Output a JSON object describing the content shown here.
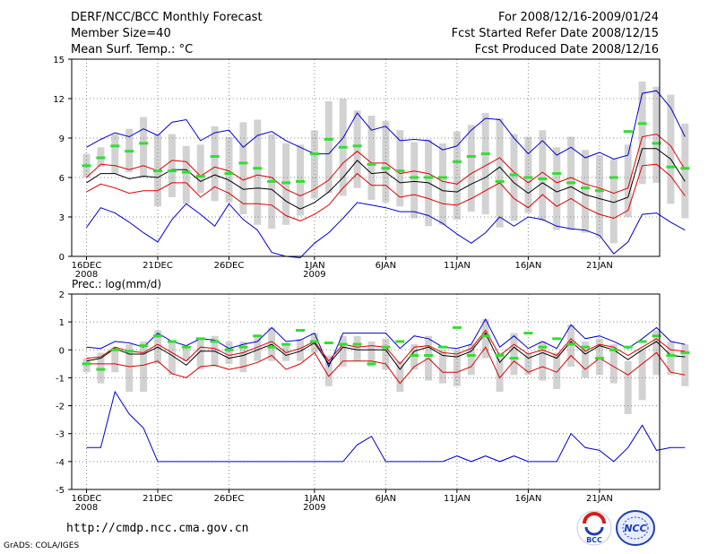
{
  "header": {
    "title": "DERF/NCC/BCC Monthly Forecast",
    "member_size": "Member Size=40",
    "variable": "Mean Surf. Temp.: °C",
    "period": "For 2008/12/16-2009/01/24",
    "started": "Fcst Started Refer Date 2008/12/15",
    "produced": "Fcst Produced Date 2008/12/16"
  },
  "footer": {
    "url": "http://cmdp.ncc.cma.gov.cn",
    "credit": "GrADS: COLA/IGES",
    "logo_bcc": "BCC",
    "logo_ncc": "NCC"
  },
  "colors": {
    "envelope": "#0000cc",
    "spread": "#dd0000",
    "mean": "#000000",
    "median": "#33dd33",
    "box": "#d2d2d2",
    "grid": "#888888"
  },
  "chart_data": [
    {
      "type": "line",
      "title": "Mean Surf. Temp.: °C",
      "xlabel": "",
      "ylabel": "",
      "ylim": [
        0,
        15
      ],
      "yticks": [
        0,
        3,
        6,
        9,
        12,
        15
      ],
      "xticks": [
        {
          "day": 0,
          "label": "16DEC",
          "sub": "2008"
        },
        {
          "day": 5,
          "label": "21DEC",
          "sub": ""
        },
        {
          "day": 10,
          "label": "26DEC",
          "sub": ""
        },
        {
          "day": 16,
          "label": "1JAN",
          "sub": "2009"
        },
        {
          "day": 21,
          "label": "6JAN",
          "sub": ""
        },
        {
          "day": 26,
          "label": "11JAN",
          "sub": ""
        },
        {
          "day": 31,
          "label": "16JAN",
          "sub": ""
        },
        {
          "day": 36,
          "label": "21JAN",
          "sub": ""
        }
      ],
      "series": [
        {
          "name": "max",
          "values": [
            8.3,
            8.9,
            9.4,
            9.1,
            9.7,
            9.2,
            10.2,
            10.4,
            8.8,
            9.4,
            9.6,
            8.3,
            9.2,
            9.5,
            8.8,
            8.3,
            7.8,
            7.8,
            9.0,
            10.9,
            9.6,
            9.9,
            8.8,
            8.9,
            8.8,
            8.1,
            8.4,
            9.6,
            10.5,
            10.4,
            9.0,
            7.8,
            8.8,
            7.7,
            8.3,
            7.5,
            7.9,
            7.4,
            7.7,
            12.4,
            12.6,
            11.3,
            9.1
          ]
        },
        {
          "name": "upper",
          "values": [
            6.0,
            7.0,
            6.9,
            6.6,
            6.9,
            6.5,
            7.3,
            7.2,
            6.1,
            6.8,
            6.5,
            5.8,
            6.2,
            6.0,
            5.1,
            4.6,
            5.1,
            5.8,
            7.1,
            8.0,
            7.1,
            7.1,
            6.3,
            6.5,
            6.3,
            5.7,
            5.5,
            6.3,
            6.9,
            7.5,
            6.4,
            5.6,
            6.4,
            5.6,
            6.0,
            5.5,
            5.2,
            4.8,
            5.2,
            9.1,
            9.3,
            8.4,
            6.6
          ]
        },
        {
          "name": "mean",
          "values": [
            5.6,
            6.3,
            6.3,
            5.9,
            6.1,
            6.0,
            6.6,
            6.6,
            5.7,
            6.2,
            5.8,
            5.1,
            5.2,
            5.1,
            4.2,
            3.6,
            4.1,
            4.9,
            6.0,
            7.3,
            6.3,
            6.4,
            5.6,
            5.7,
            5.6,
            5.0,
            4.9,
            5.5,
            6.0,
            6.8,
            5.6,
            4.8,
            5.6,
            4.9,
            5.3,
            4.7,
            4.4,
            4.1,
            4.5,
            8.2,
            8.2,
            7.4,
            5.7
          ]
        },
        {
          "name": "lower",
          "values": [
            4.9,
            5.5,
            5.2,
            4.8,
            5.0,
            5.0,
            5.6,
            5.6,
            4.5,
            5.3,
            4.8,
            4.0,
            4.0,
            3.9,
            3.1,
            2.7,
            3.2,
            3.9,
            5.2,
            6.3,
            5.4,
            5.4,
            4.5,
            4.7,
            4.4,
            4.0,
            3.9,
            4.4,
            5.0,
            5.6,
            4.4,
            3.7,
            4.7,
            3.8,
            4.4,
            3.7,
            3.2,
            2.9,
            3.5,
            6.9,
            7.0,
            6.1,
            4.6
          ]
        },
        {
          "name": "min",
          "values": [
            2.2,
            3.7,
            3.3,
            2.6,
            1.8,
            1.1,
            2.8,
            4.0,
            3.2,
            2.3,
            4.0,
            2.8,
            2.0,
            0.3,
            0.0,
            -0.1,
            1.0,
            1.8,
            2.9,
            4.1,
            3.9,
            3.7,
            3.4,
            3.4,
            3.1,
            2.5,
            1.7,
            1.0,
            1.8,
            3.0,
            2.3,
            3.0,
            2.8,
            2.3,
            2.1,
            2.0,
            1.6,
            0.2,
            1.1,
            3.2,
            3.3,
            2.6,
            2.0
          ]
        },
        {
          "name": "median",
          "values": [
            6.9,
            7.5,
            8.4,
            8.0,
            8.6,
            6.5,
            6.5,
            6.4,
            6.1,
            7.6,
            6.3,
            7.1,
            6.7,
            5.7,
            5.6,
            5.7,
            7.8,
            8.9,
            8.3,
            8.4,
            7.0,
            6.7,
            6.5,
            6.0,
            6.0,
            6.0,
            7.2,
            7.6,
            7.8,
            5.7,
            6.2,
            6.0,
            5.9,
            6.3,
            5.6,
            5.2,
            5.0,
            6.0,
            9.5,
            10.1,
            8.6,
            6.8,
            6.7
          ]
        }
      ],
      "boxes": [
        [
          6.0,
          7.8
        ],
        [
          6.8,
          8.3
        ],
        [
          6.3,
          9.3
        ],
        [
          6.4,
          9.7
        ],
        [
          6.0,
          10.6
        ],
        [
          3.8,
          9.3
        ],
        [
          4.5,
          9.3
        ],
        [
          4.0,
          8.4
        ],
        [
          4.8,
          8.5
        ],
        [
          4.2,
          9.9
        ],
        [
          4.1,
          9.1
        ],
        [
          3.2,
          10.2
        ],
        [
          2.4,
          10.4
        ],
        [
          2.1,
          9.3
        ],
        [
          2.4,
          8.6
        ],
        [
          3.1,
          8.5
        ],
        [
          4.4,
          9.6
        ],
        [
          4.8,
          11.8
        ],
        [
          4.6,
          12.0
        ],
        [
          5.2,
          11.1
        ],
        [
          4.3,
          10.7
        ],
        [
          4.1,
          10.3
        ],
        [
          3.8,
          9.6
        ],
        [
          2.9,
          8.7
        ],
        [
          2.3,
          8.9
        ],
        [
          2.4,
          8.6
        ],
        [
          2.8,
          9.5
        ],
        [
          3.4,
          10.0
        ],
        [
          3.2,
          10.9
        ],
        [
          2.2,
          10.5
        ],
        [
          2.7,
          9.3
        ],
        [
          3.3,
          9.1
        ],
        [
          2.7,
          9.6
        ],
        [
          2.0,
          8.3
        ],
        [
          2.0,
          9.1
        ],
        [
          1.8,
          8.1
        ],
        [
          1.4,
          7.7
        ],
        [
          1.0,
          7.4
        ],
        [
          3.0,
          8.5
        ],
        [
          5.5,
          13.3
        ],
        [
          5.6,
          12.9
        ],
        [
          4.0,
          12.3
        ],
        [
          2.9,
          10.1
        ]
      ]
    },
    {
      "type": "line",
      "title": "Prec.: log(mm/d)",
      "xlabel": "",
      "ylabel": "",
      "ylim": [
        -5,
        2
      ],
      "yticks": [
        -5,
        -4,
        -3,
        -2,
        -1,
        0,
        1,
        2
      ],
      "xticks": [
        {
          "day": 0,
          "label": "16DEC",
          "sub": "2008"
        },
        {
          "day": 5,
          "label": "21DEC",
          "sub": ""
        },
        {
          "day": 10,
          "label": "26DEC",
          "sub": ""
        },
        {
          "day": 16,
          "label": "1JAN",
          "sub": "2009"
        },
        {
          "day": 21,
          "label": "6JAN",
          "sub": ""
        },
        {
          "day": 26,
          "label": "11JAN",
          "sub": ""
        },
        {
          "day": 31,
          "label": "16JAN",
          "sub": ""
        },
        {
          "day": 36,
          "label": "21JAN",
          "sub": ""
        }
      ],
      "series": [
        {
          "name": "max",
          "values": [
            0.1,
            0.05,
            0.3,
            0.25,
            0.1,
            0.6,
            0.3,
            0.15,
            0.4,
            0.35,
            0.05,
            0.2,
            0.3,
            0.8,
            0.3,
            0.35,
            0.6,
            -0.6,
            0.6,
            0.6,
            0.6,
            0.6,
            0.05,
            0.5,
            0.4,
            0.1,
            0.05,
            0.2,
            1.1,
            0.1,
            0.5,
            0.05,
            0.3,
            0.05,
            0.9,
            0.4,
            0.5,
            0.3,
            0.05,
            0.4,
            0.8,
            0.3,
            0.2
          ]
        },
        {
          "name": "upper",
          "values": [
            -0.3,
            -0.25,
            0.1,
            -0.05,
            -0.1,
            0.2,
            -0.1,
            -0.4,
            0.1,
            0.05,
            -0.2,
            -0.1,
            0.1,
            0.3,
            -0.1,
            0.05,
            0.3,
            -0.4,
            0.2,
            0.1,
            0.15,
            0.1,
            -0.5,
            0.1,
            0.15,
            -0.1,
            -0.15,
            0.05,
            0.7,
            -0.2,
            0.2,
            -0.15,
            0.0,
            -0.2,
            0.4,
            -0.05,
            0.2,
            0.1,
            -0.2,
            0.1,
            0.4,
            0.0,
            -0.05
          ]
        },
        {
          "name": "mean",
          "values": [
            -0.4,
            -0.3,
            0.05,
            -0.15,
            -0.15,
            0.1,
            -0.2,
            -0.55,
            -0.05,
            -0.05,
            -0.3,
            -0.2,
            0.0,
            0.2,
            -0.2,
            -0.05,
            0.25,
            -0.5,
            0.1,
            0.0,
            0.0,
            0.0,
            -0.7,
            -0.05,
            0.1,
            -0.2,
            -0.25,
            -0.05,
            0.6,
            -0.45,
            0.1,
            -0.3,
            -0.1,
            -0.3,
            0.3,
            -0.15,
            0.15,
            0.0,
            -0.35,
            0.0,
            0.3,
            -0.2,
            -0.25
          ]
        },
        {
          "name": "lower",
          "values": [
            -0.5,
            -0.5,
            -0.5,
            -0.6,
            -0.55,
            -0.4,
            -0.85,
            -1.0,
            -0.6,
            -0.55,
            -0.7,
            -0.6,
            -0.45,
            -0.2,
            -0.7,
            -0.5,
            -0.1,
            -0.95,
            -0.4,
            -0.4,
            -0.4,
            -0.5,
            -1.2,
            -0.6,
            -0.3,
            -0.8,
            -0.8,
            -0.6,
            0.1,
            -1.0,
            -0.4,
            -0.8,
            -0.6,
            -0.8,
            -0.2,
            -0.7,
            -0.3,
            -0.6,
            -0.9,
            -0.5,
            -0.1,
            -0.8,
            -0.9
          ]
        },
        {
          "name": "min",
          "values": [
            -3.5,
            -3.5,
            -1.5,
            -2.3,
            -2.8,
            -4.0,
            -4.0,
            -4.0,
            -4.0,
            -4.0,
            -4.0,
            -4.0,
            -4.0,
            -4.0,
            -4.0,
            -4.0,
            -4.0,
            -4.0,
            -4.0,
            -3.4,
            -3.1,
            -4.0,
            -4.0,
            -4.0,
            -4.0,
            -4.0,
            -3.8,
            -4.0,
            -3.8,
            -4.0,
            -3.8,
            -4.0,
            -4.0,
            -4.0,
            -3.0,
            -3.5,
            -3.6,
            -4.0,
            -3.5,
            -2.7,
            -3.6,
            -3.5,
            -3.5
          ]
        },
        {
          "name": "median",
          "values": [
            -0.5,
            -0.7,
            0.0,
            -0.05,
            0.15,
            0.5,
            0.3,
            0.1,
            0.4,
            0.3,
            0.0,
            0.1,
            0.5,
            0.1,
            0.2,
            0.7,
            0.3,
            0.25,
            0.2,
            0.2,
            -0.5,
            0.1,
            0.3,
            -0.2,
            -0.2,
            0.1,
            0.8,
            -0.2,
            0.5,
            -0.2,
            -0.3,
            0.6,
            0.1,
            0.4,
            0.2,
            0.1,
            -0.3,
            0.0,
            0.1,
            0.3,
            0.5,
            -0.2,
            -0.1
          ]
        }
      ],
      "boxes": [
        [
          -0.8,
          -0.3
        ],
        [
          -1.2,
          -0.1
        ],
        [
          -0.8,
          0.1
        ],
        [
          -1.5,
          0.2
        ],
        [
          -1.5,
          0.3
        ],
        [
          -0.5,
          0.7
        ],
        [
          -0.9,
          0.3
        ],
        [
          -0.4,
          0.1
        ],
        [
          -0.7,
          0.4
        ],
        [
          -0.6,
          0.5
        ],
        [
          -0.5,
          0.3
        ],
        [
          -0.8,
          0.3
        ],
        [
          -0.4,
          0.5
        ],
        [
          -0.4,
          0.8
        ],
        [
          -0.4,
          0.2
        ],
        [
          -0.4,
          0.4
        ],
        [
          -0.1,
          0.6
        ],
        [
          -1.3,
          -0.2
        ],
        [
          -0.6,
          0.5
        ],
        [
          -0.4,
          0.5
        ],
        [
          -0.6,
          0.3
        ],
        [
          -0.7,
          0.4
        ],
        [
          -1.5,
          -0.4
        ],
        [
          -0.7,
          0.2
        ],
        [
          -1.1,
          0.5
        ],
        [
          -1.2,
          0.0
        ],
        [
          -1.3,
          0.0
        ],
        [
          -0.9,
          0.2
        ],
        [
          -0.3,
          1.1
        ],
        [
          -1.5,
          -0.1
        ],
        [
          -0.9,
          0.6
        ],
        [
          -0.9,
          -0.1
        ],
        [
          -1.1,
          0.3
        ],
        [
          -1.4,
          -0.1
        ],
        [
          -0.6,
          0.9
        ],
        [
          -1.0,
          0.3
        ],
        [
          -0.9,
          0.4
        ],
        [
          -1.2,
          0.2
        ],
        [
          -2.3,
          -0.4
        ],
        [
          -1.8,
          0.0
        ],
        [
          -0.9,
          0.7
        ],
        [
          -0.9,
          0.3
        ],
        [
          -1.3,
          0.2
        ]
      ]
    }
  ]
}
